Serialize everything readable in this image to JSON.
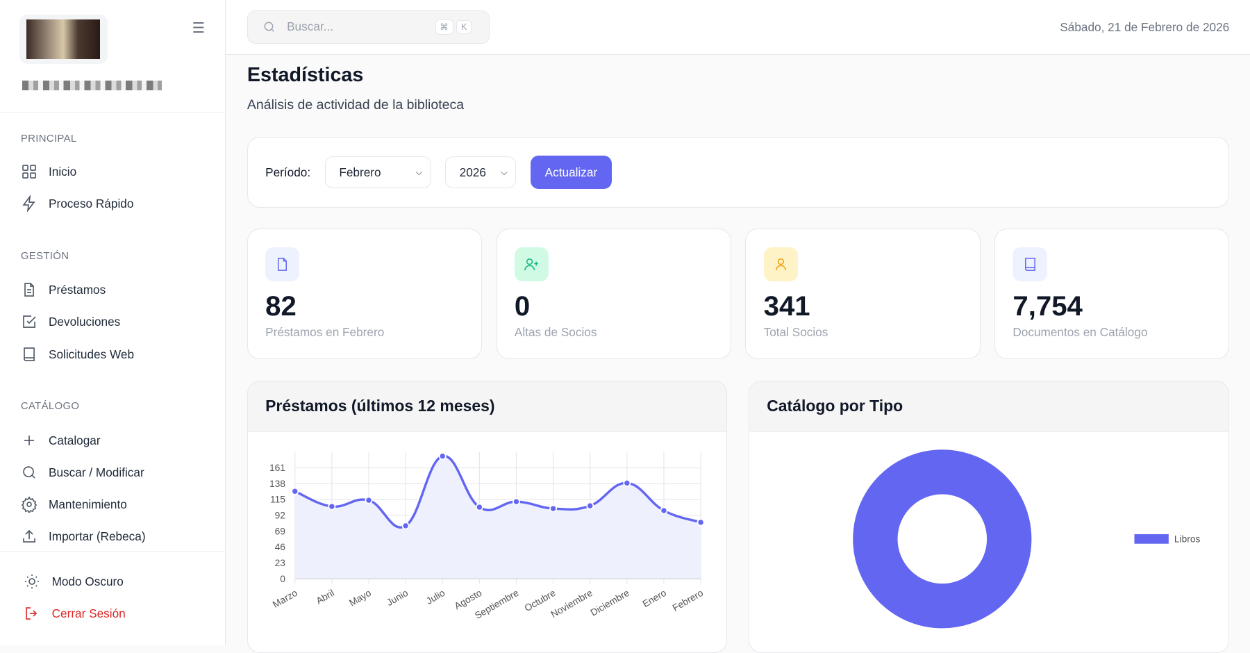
{
  "sidebar": {
    "menu_icon": "hamburger-icon",
    "sections": [
      {
        "title": "PRINCIPAL",
        "items": [
          {
            "label": "Inicio",
            "icon": "grid-icon"
          },
          {
            "label": "Proceso Rápido",
            "icon": "lightning-icon"
          }
        ]
      },
      {
        "title": "GESTIÓN",
        "items": [
          {
            "label": "Préstamos",
            "icon": "document-icon"
          },
          {
            "label": "Devoluciones",
            "icon": "checkbox-icon"
          },
          {
            "label": "Solicitudes Web",
            "icon": "book-icon"
          }
        ]
      },
      {
        "title": "CATÁLOGO",
        "items": [
          {
            "label": "Catalogar",
            "icon": "plus-icon"
          },
          {
            "label": "Buscar / Modificar",
            "icon": "search-icon"
          },
          {
            "label": "Mantenimiento",
            "icon": "gear-icon"
          },
          {
            "label": "Importar (Rebeca)",
            "icon": "upload-icon"
          }
        ]
      }
    ],
    "dark_mode": "Modo Oscuro",
    "logout": "Cerrar Sesión"
  },
  "header": {
    "search_placeholder": "Buscar...",
    "kbd1": "⌘",
    "kbd2": "K",
    "date": "Sábado, 21 de Febrero de 2026"
  },
  "page": {
    "title": "Estadísticas",
    "subtitle": "Análisis de actividad de la biblioteca"
  },
  "filter": {
    "label": "Período:",
    "month": "Febrero",
    "year": "2026",
    "button": "Actualizar"
  },
  "stats": [
    {
      "value": "82",
      "label": "Préstamos en Febrero",
      "icon": "document-icon",
      "color": "#6366f1",
      "bg": "#eef2ff"
    },
    {
      "value": "0",
      "label": "Altas de Socios",
      "icon": "user-plus-icon",
      "color": "#10b981",
      "bg": "#d1fae5"
    },
    {
      "value": "341",
      "label": "Total Socios",
      "icon": "user-icon",
      "color": "#f59e0b",
      "bg": "#fef3c7"
    },
    {
      "value": "7,754",
      "label": "Documentos en Catálogo",
      "icon": "book-icon",
      "color": "#6366f1",
      "bg": "#eef2ff"
    }
  ],
  "chart_data": [
    {
      "type": "line",
      "title": "Préstamos (últimos 12 meses)",
      "categories": [
        "Marzo",
        "Abril",
        "Mayo",
        "Junio",
        "Julio",
        "Agosto",
        "Septiembre",
        "Octubre",
        "Noviembre",
        "Diciembre",
        "Enero",
        "Febrero"
      ],
      "values": [
        127,
        105,
        114,
        77,
        178,
        104,
        112,
        102,
        106,
        139,
        99,
        82
      ],
      "yticks": [
        0,
        23,
        46,
        69,
        92,
        115,
        138,
        161
      ],
      "ylim": [
        0,
        184
      ],
      "grid": true,
      "color": "#6366f1",
      "fill": "#eef0fd"
    },
    {
      "type": "pie",
      "title": "Catálogo por Tipo",
      "donut": true,
      "labels": [
        "Libros"
      ],
      "values": [
        7754
      ],
      "colors": [
        "#6366f1"
      ],
      "legend": "right"
    }
  ]
}
